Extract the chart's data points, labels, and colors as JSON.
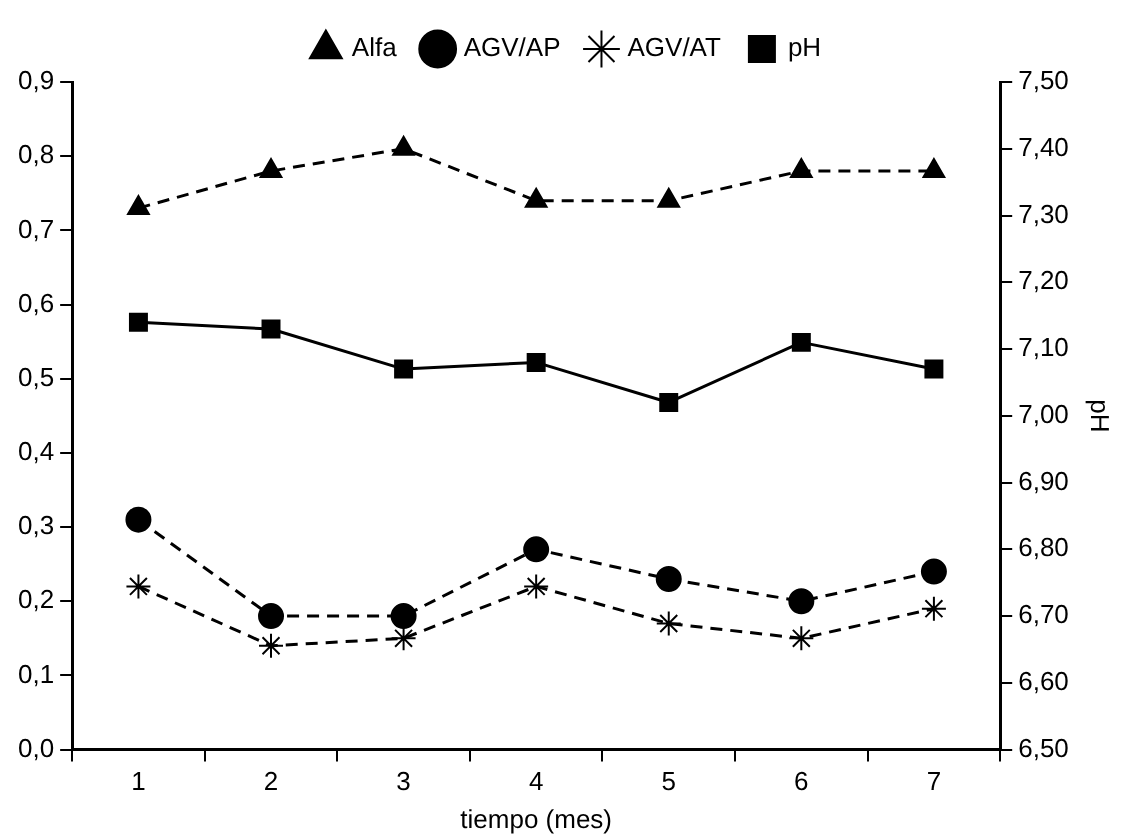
{
  "chart_data": {
    "type": "line",
    "xlabel": "tiempo (mes)",
    "y2label": "pH",
    "categories": [
      "1",
      "2",
      "3",
      "4",
      "5",
      "6",
      "7"
    ],
    "series": [
      {
        "name": "Alfa",
        "color": "#000000",
        "marker": "triangle",
        "line_style": "dashed",
        "values": [
          0.73,
          0.78,
          0.81,
          0.74,
          0.74,
          0.78,
          0.78
        ]
      },
      {
        "name": "AGV/AP",
        "color": "#000000",
        "marker": "circle",
        "line_style": "dashed",
        "values": [
          0.31,
          0.18,
          0.18,
          0.27,
          0.23,
          0.2,
          0.24
        ]
      },
      {
        "name": "AGV/AT",
        "color": "#000000",
        "marker": "cross",
        "line_style": "dashed",
        "values": [
          0.22,
          0.14,
          0.15,
          0.22,
          0.17,
          0.15,
          0.19
        ]
      },
      {
        "name": "pH",
        "color": "#000000",
        "marker": "square",
        "line_style": "solid",
        "axis": "y2",
        "values": [
          7.14,
          7.13,
          7.07,
          7.08,
          7.02,
          7.11,
          7.07
        ]
      }
    ],
    "ylim": [
      0,
      0.9
    ],
    "yticks": [
      {
        "value": 0,
        "label": "0,0"
      },
      {
        "value": 0.1,
        "label": "0,1"
      },
      {
        "value": 0.2,
        "label": "0,2"
      },
      {
        "value": 0.3,
        "label": "0,3"
      },
      {
        "value": 0.4,
        "label": "0,4"
      },
      {
        "value": 0.5,
        "label": "0,5"
      },
      {
        "value": 0.6,
        "label": "0,6"
      },
      {
        "value": 0.7,
        "label": "0,7"
      },
      {
        "value": 0.8,
        "label": "0,8"
      },
      {
        "value": 0.9,
        "label": "0,9"
      }
    ],
    "y2lim": [
      6.5,
      7.5
    ],
    "y2ticks": [
      {
        "value": 6.5,
        "label": "6,50"
      },
      {
        "value": 6.6,
        "label": "6,60"
      },
      {
        "value": 6.7,
        "label": "6,70"
      },
      {
        "value": 6.8,
        "label": "6,80"
      },
      {
        "value": 6.9,
        "label": "6,90"
      },
      {
        "value": 7.0,
        "label": "7,00"
      },
      {
        "value": 7.1,
        "label": "7,10"
      },
      {
        "value": 7.2,
        "label": "7,20"
      },
      {
        "value": 7.3,
        "label": "7,30"
      },
      {
        "value": 7.4,
        "label": "7,40"
      },
      {
        "value": 7.5,
        "label": "7,50"
      }
    ],
    "grid": false,
    "legend": "top"
  }
}
